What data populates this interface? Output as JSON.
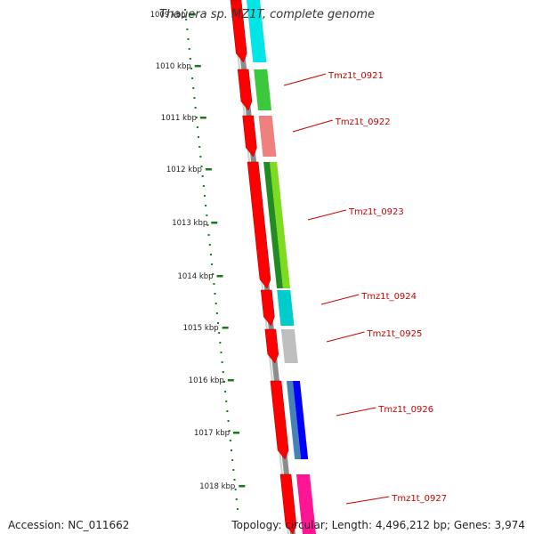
{
  "title": "Thauera sp. MZ1T, complete genome",
  "accession": "Accession: NC_011662",
  "summary": "Topology: circular; Length: 4,496,212 bp; Genes: 3,974",
  "kbp_labels": [
    "1009 kbp",
    "1010 kbp",
    "1011 kbp",
    "1012 kbp",
    "1013 kbp",
    "1014 kbp",
    "1015 kbp",
    "1016 kbp",
    "1017 kbp",
    "1018 kbp"
  ],
  "colors": {
    "backbone": "#8c8c8c",
    "cds": "#ff0000",
    "tick": "#1a7a1a",
    "label_text": "#cc0000",
    "leader": "#cc0000"
  },
  "genes": [
    {
      "label": "",
      "color": "#00e5e5"
    },
    {
      "label": "Tmz1t_0921",
      "color": "#3cc83c"
    },
    {
      "label": "Tmz1t_0922",
      "color": "#f08080"
    },
    {
      "label": "Tmz1t_0923",
      "color": "#7ddc1f",
      "second_color": "#228b22"
    },
    {
      "label": "Tmz1t_0924",
      "color": "#00cccc"
    },
    {
      "label": "Tmz1t_0925",
      "color": "#bfbfbf"
    },
    {
      "label": "Tmz1t_0926",
      "color": "#0000ff",
      "second_color": "#4682b4"
    },
    {
      "label": "Tmz1t_0927",
      "color": "#ff1493"
    }
  ]
}
